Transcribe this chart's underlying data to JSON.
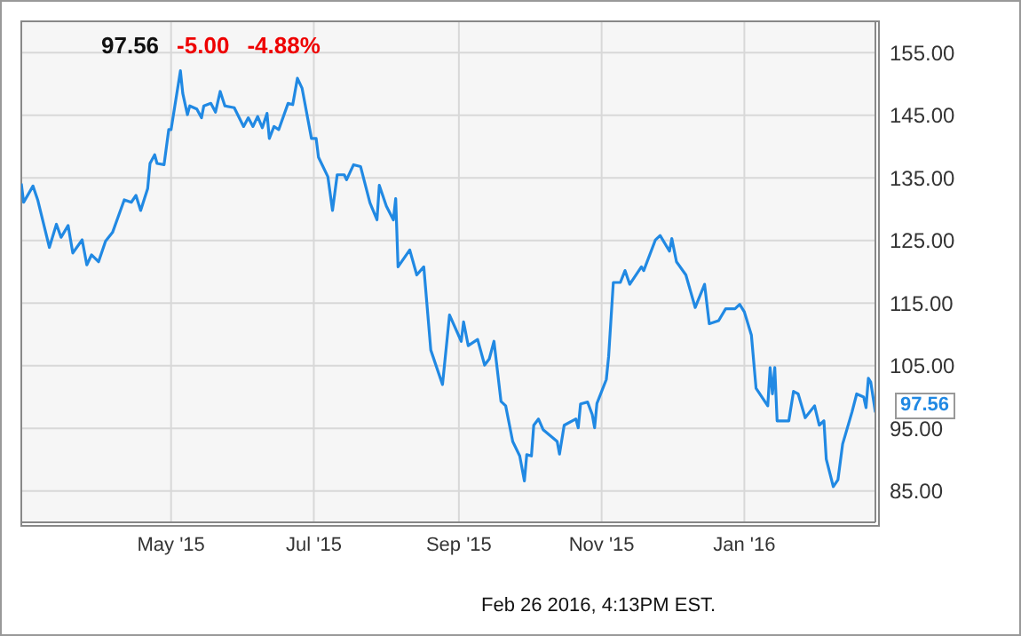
{
  "chart_data": {
    "type": "line",
    "color": "#2189e3",
    "x": [
      "2015-02-26",
      "2015-02-27",
      "2015-03-03",
      "2015-03-05",
      "2015-03-10",
      "2015-03-13",
      "2015-03-15",
      "2015-03-18",
      "2015-03-20",
      "2015-03-24",
      "2015-03-26",
      "2015-03-28",
      "2015-03-31",
      "2015-04-03",
      "2015-04-06",
      "2015-04-11",
      "2015-04-14",
      "2015-04-16",
      "2015-04-18",
      "2015-04-21",
      "2015-04-22",
      "2015-04-24",
      "2015-04-25",
      "2015-04-28",
      "2015-04-30",
      "2015-05-01",
      "2015-05-05",
      "2015-05-06",
      "2015-05-08",
      "2015-05-09",
      "2015-05-12",
      "2015-05-14",
      "2015-05-15",
      "2015-05-18",
      "2015-05-20",
      "2015-05-22",
      "2015-05-24",
      "2015-05-28",
      "2015-06-01",
      "2015-06-03",
      "2015-06-05",
      "2015-06-07",
      "2015-06-09",
      "2015-06-11",
      "2015-06-12",
      "2015-06-14",
      "2015-06-16",
      "2015-06-20",
      "2015-06-22",
      "2015-06-24",
      "2015-06-26",
      "2015-06-30",
      "2015-07-02",
      "2015-07-03",
      "2015-07-07",
      "2015-07-09",
      "2015-07-11",
      "2015-07-14",
      "2015-07-15",
      "2015-07-18",
      "2015-07-21",
      "2015-07-25",
      "2015-07-28",
      "2015-07-29",
      "2015-08-01",
      "2015-08-04",
      "2015-08-05",
      "2015-08-06",
      "2015-08-11",
      "2015-08-14",
      "2015-08-17",
      "2015-08-20",
      "2015-08-25",
      "2015-08-28",
      "2015-09-02",
      "2015-09-03",
      "2015-09-05",
      "2015-09-09",
      "2015-09-12",
      "2015-09-14",
      "2015-09-16",
      "2015-09-19",
      "2015-09-21",
      "2015-09-24",
      "2015-09-27",
      "2015-09-29",
      "2015-09-30",
      "2015-10-02",
      "2015-10-03",
      "2015-10-05",
      "2015-10-07",
      "2015-10-13",
      "2015-10-14",
      "2015-10-16",
      "2015-10-21",
      "2015-10-22",
      "2015-10-23",
      "2015-10-26",
      "2015-10-28",
      "2015-10-29",
      "2015-10-30",
      "2015-11-03",
      "2015-11-04",
      "2015-11-06",
      "2015-11-09",
      "2015-11-11",
      "2015-11-13",
      "2015-11-18",
      "2015-11-19",
      "2015-11-24",
      "2015-11-26",
      "2015-11-30",
      "2015-12-01",
      "2015-12-03",
      "2015-12-07",
      "2015-12-09",
      "2015-12-11",
      "2015-12-15",
      "2015-12-17",
      "2015-12-21",
      "2015-12-24",
      "2015-12-28",
      "2015-12-30",
      "2016-01-01",
      "2016-01-04",
      "2016-01-06",
      "2016-01-11",
      "2016-01-12",
      "2016-01-13",
      "2016-01-14",
      "2016-01-15",
      "2016-01-20",
      "2016-01-22",
      "2016-01-24",
      "2016-01-27",
      "2016-01-31",
      "2016-02-02",
      "2016-02-04",
      "2016-02-05",
      "2016-02-08",
      "2016-02-10",
      "2016-02-12",
      "2016-02-16",
      "2016-02-18",
      "2016-02-21",
      "2016-02-22",
      "2016-02-23",
      "2016-02-24",
      "2016-02-26"
    ],
    "values": [
      134.1,
      131.1,
      133.7,
      131.5,
      123.9,
      127.6,
      125.5,
      127.4,
      123,
      125.1,
      121.1,
      122.7,
      121.6,
      124.9,
      126.3,
      131.5,
      131.1,
      132.2,
      129.8,
      133.3,
      137.3,
      138.7,
      137.3,
      137.1,
      142.7,
      142.7,
      152.1,
      148.5,
      145.1,
      146.5,
      146,
      144.6,
      146.5,
      146.9,
      145.5,
      148.8,
      146.5,
      146.2,
      143.2,
      144.6,
      143.2,
      144.8,
      143,
      145.3,
      141.3,
      143.2,
      142.7,
      146.9,
      146.7,
      150.9,
      149.3,
      141.3,
      141.3,
      138.3,
      135.2,
      129.8,
      135.5,
      135.5,
      134.7,
      137.1,
      136.8,
      131,
      128.3,
      133.8,
      130.5,
      128.3,
      131.7,
      120.8,
      123.5,
      119.5,
      120.8,
      107.5,
      102,
      113.1,
      108.9,
      112,
      108.2,
      109.2,
      105.1,
      106.1,
      108.9,
      99.3,
      98.6,
      92.9,
      90.6,
      86.6,
      90.8,
      90.6,
      95.5,
      96.5,
      94.8,
      92.9,
      90.9,
      95.5,
      96.5,
      95.1,
      98.9,
      99.2,
      97.2,
      95.1,
      99,
      102.8,
      106.5,
      118.3,
      118.3,
      120.2,
      118,
      120.8,
      120.2,
      125.1,
      125.8,
      123.3,
      125.3,
      121.6,
      119.5,
      116.9,
      114.3,
      118,
      111.7,
      112.2,
      114.1,
      114.1,
      114.8,
      113.6,
      109.9,
      101.4,
      98.6,
      104.7,
      100.5,
      104.7,
      96.2,
      96.2,
      100.9,
      100.5,
      96.7,
      98.6,
      95.5,
      96.2,
      90.1,
      85.7,
      86.8,
      92.5,
      97.6,
      100.5,
      100,
      98.3,
      103,
      102.4,
      97.56
    ],
    "xlim": [
      "2015-02-26",
      "2016-02-26"
    ],
    "xticks": [
      {
        "value": "2015-05-01",
        "label": "May '15"
      },
      {
        "value": "2015-07-01",
        "label": "Jul '15"
      },
      {
        "value": "2015-09-01",
        "label": "Sep '15"
      },
      {
        "value": "2015-11-01",
        "label": "Nov '15"
      },
      {
        "value": "2016-01-01",
        "label": "Jan '16"
      }
    ],
    "ylim": [
      80,
      160
    ],
    "yticks": [
      {
        "value": 85,
        "label": "85.00"
      },
      {
        "value": 95,
        "label": "95.00"
      },
      {
        "value": 105,
        "label": "105.00"
      },
      {
        "value": 115,
        "label": "115.00"
      },
      {
        "value": 125,
        "label": "125.00"
      },
      {
        "value": 135,
        "label": "135.00"
      },
      {
        "value": 145,
        "label": "145.00"
      },
      {
        "value": 155,
        "label": "155.00"
      }
    ],
    "grid": true,
    "marker": "none",
    "line_style": "solid",
    "annotations": [
      "97.56",
      "-5.00",
      "-4.88%",
      "Feb 26 2016, 4:13PM EST.",
      {
        "text": "97.56",
        "x": "2016-02-26",
        "y": 97.56
      }
    ]
  }
}
